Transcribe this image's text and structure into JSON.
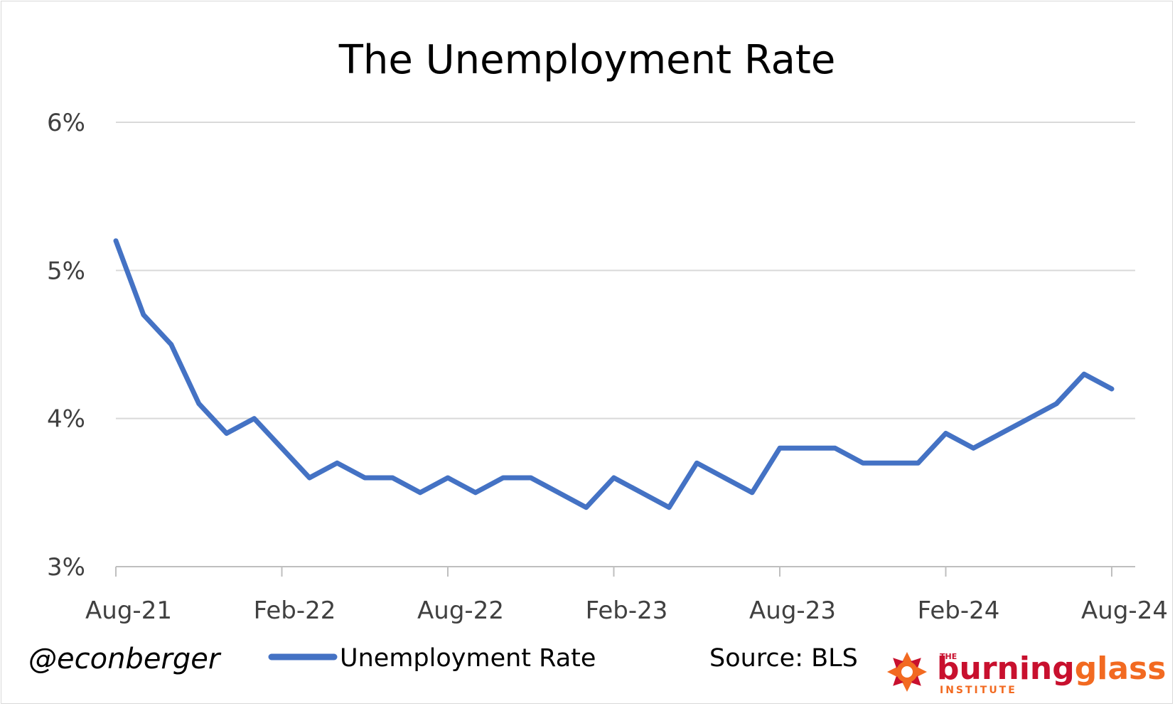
{
  "footer": {
    "handle": "@econberger",
    "source": "Source: BLS",
    "logo": {
      "small": "THE",
      "word1": "burning",
      "word2": "glass",
      "sub": "INSTITUTE",
      "color_red": "#c8102e",
      "color_orange": "#f26a21"
    }
  },
  "chart_data": {
    "type": "line",
    "title": "The Unemployment Rate",
    "xlabel": "",
    "ylabel": "",
    "ylim": [
      3,
      6
    ],
    "y_ticks": [
      3,
      4,
      5,
      6
    ],
    "y_tick_labels": [
      "3%",
      "4%",
      "5%",
      "6%"
    ],
    "x_tick_labels": [
      "Aug-21",
      "Feb-22",
      "Aug-22",
      "Feb-23",
      "Aug-23",
      "Feb-24",
      "Aug-24"
    ],
    "x_tick_indices": [
      0,
      6,
      12,
      18,
      24,
      30,
      36
    ],
    "grid": true,
    "legend": "bottom",
    "line_color": "#4472c4",
    "x": [
      "Aug-21",
      "Sep-21",
      "Oct-21",
      "Nov-21",
      "Dec-21",
      "Jan-22",
      "Feb-22",
      "Mar-22",
      "Apr-22",
      "May-22",
      "Jun-22",
      "Jul-22",
      "Aug-22",
      "Sep-22",
      "Oct-22",
      "Nov-22",
      "Dec-22",
      "Jan-23",
      "Feb-23",
      "Mar-23",
      "Apr-23",
      "May-23",
      "Jun-23",
      "Jul-23",
      "Aug-23",
      "Sep-23",
      "Oct-23",
      "Nov-23",
      "Dec-23",
      "Jan-24",
      "Feb-24",
      "Mar-24",
      "Apr-24",
      "May-24",
      "Jun-24",
      "Jul-24",
      "Aug-24"
    ],
    "series": [
      {
        "name": "Unemployment Rate",
        "values": [
          5.2,
          4.7,
          4.5,
          4.1,
          3.9,
          4.0,
          3.8,
          3.6,
          3.7,
          3.6,
          3.6,
          3.5,
          3.6,
          3.5,
          3.6,
          3.6,
          3.5,
          3.4,
          3.6,
          3.5,
          3.4,
          3.7,
          3.6,
          3.5,
          3.8,
          3.8,
          3.8,
          3.7,
          3.7,
          3.7,
          3.9,
          3.8,
          3.9,
          4.0,
          4.1,
          4.3,
          4.2
        ]
      }
    ]
  }
}
